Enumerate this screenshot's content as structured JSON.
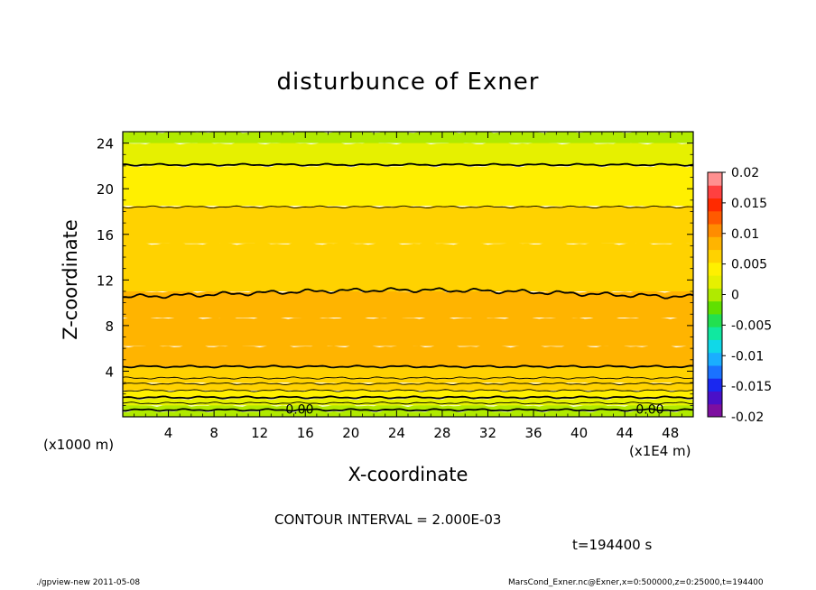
{
  "header": {
    "title": "disturbunce of Exner"
  },
  "axes": {
    "xlabel": "X-coordinate",
    "ylabel": "Z-coordinate",
    "x_unit_left": "(x1000 m)",
    "x_unit_right": "(x1E4 m)"
  },
  "footer": {
    "contour_interval": "CONTOUR INTERVAL = 2.000E-03",
    "time": "t=194400 s",
    "left_note": "./gpview-new  2011-05-08",
    "right_note": "MarsCond_Exner.nc@Exner,x=0:500000,z=0:25000,t=194400"
  },
  "chart_data": {
    "type": "heatmap",
    "title": "disturbunce of Exner",
    "xlabel": "X-coordinate",
    "ylabel": "Z-coordinate",
    "xlim": [
      0,
      50
    ],
    "ylim": [
      0,
      25
    ],
    "x_ticks": [
      4,
      8,
      12,
      16,
      20,
      24,
      28,
      32,
      36,
      40,
      44,
      48
    ],
    "y_ticks": [
      4,
      8,
      12,
      16,
      20,
      24
    ],
    "colorbar": {
      "min": -0.02,
      "max": 0.02,
      "tick_values": [
        0.02,
        0.015,
        0.01,
        0.005,
        0,
        -0.005,
        -0.01,
        -0.015,
        -0.02
      ],
      "tick_labels": [
        "0.02",
        "0.015",
        "0.01",
        "0.005",
        "0",
        "-0.005",
        "-0.01",
        "-0.015",
        "-0.02"
      ],
      "colors_low_to_high": [
        "#7d0fa0",
        "#4a10c8",
        "#1a28f0",
        "#1a72ff",
        "#1aaeff",
        "#10d8e8",
        "#10e8a0",
        "#22e050",
        "#60e000",
        "#b0ea00",
        "#e6f000",
        "#fff000",
        "#ffd200",
        "#ffb400",
        "#ff8c00",
        "#ff5a00",
        "#ff2a00",
        "#ff4040",
        "#ff9090"
      ]
    },
    "levels_by_height": [
      {
        "z": [
          0,
          0.5
        ],
        "value": 0.0
      },
      {
        "z": [
          0.5,
          1.0
        ],
        "value": 0.001
      },
      {
        "z": [
          1.0,
          1.6
        ],
        "value": 0.003
      },
      {
        "z": [
          1.6,
          2.3
        ],
        "value": 0.005
      },
      {
        "z": [
          2.3,
          3.0
        ],
        "value": 0.006
      },
      {
        "z": [
          3.0,
          4.4
        ],
        "value": 0.007
      },
      {
        "z": [
          4.4,
          6.2
        ],
        "value": 0.008
      },
      {
        "z": [
          6.2,
          8.7
        ],
        "value": 0.009
      },
      {
        "z": [
          8.7,
          11.0
        ],
        "value": 0.008
      },
      {
        "z": [
          11.0,
          15.2
        ],
        "value": 0.007
      },
      {
        "z": [
          15.2,
          18.5
        ],
        "value": 0.006
      },
      {
        "z": [
          18.5,
          22.0
        ],
        "value": 0.004
      },
      {
        "z": [
          22.0,
          24.0
        ],
        "value": 0.002
      },
      {
        "z": [
          24.0,
          25.0
        ],
        "value": 0.001
      }
    ],
    "contour_lines": [
      {
        "z": 0.6,
        "bold": true
      },
      {
        "z": 1.2,
        "bold": false
      },
      {
        "z": 1.7,
        "bold": true
      },
      {
        "z": 2.3,
        "bold": false
      },
      {
        "z": 2.9,
        "bold": false
      },
      {
        "z": 3.4,
        "bold": false
      },
      {
        "z": 4.4,
        "bold": true
      },
      {
        "z": 10.8,
        "bold": true
      },
      {
        "z": 18.4,
        "bold": false
      },
      {
        "z": 22.1,
        "bold": true
      }
    ],
    "contour_labels": [
      {
        "x": 15.5,
        "z": 0.6,
        "text": "0.00"
      },
      {
        "x": 46.2,
        "z": 0.6,
        "text": "0.00"
      }
    ],
    "contour_interval": 0.002,
    "time_s": 194400
  }
}
